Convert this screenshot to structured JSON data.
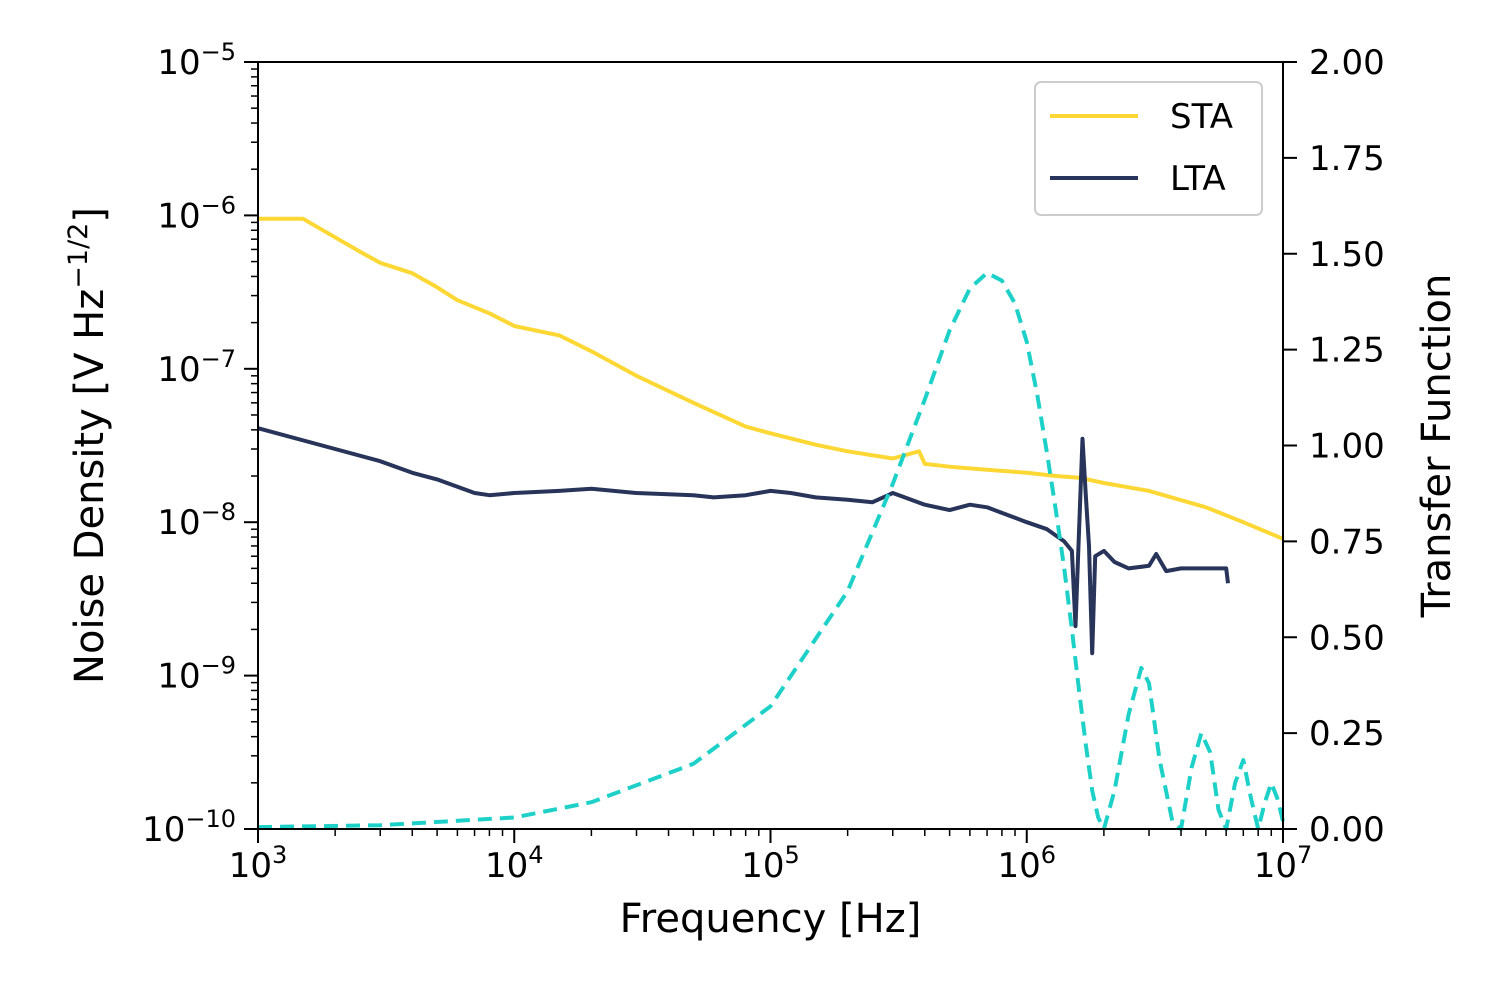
{
  "chart_data": {
    "type": "line",
    "xlabel": "Frequency [Hz]",
    "ylabel_left": "Noise Density [V Hz⁻¹ᐟ²]",
    "ylabel_left_parts": [
      "Noise Density [V Hz",
      "−1/2",
      "]"
    ],
    "ylabel_right": "Transfer Function",
    "x_scale": "log",
    "x_range": [
      1000,
      10000000
    ],
    "x_ticks": [
      {
        "value": 1000,
        "base": "10",
        "exp": "3"
      },
      {
        "value": 10000,
        "base": "10",
        "exp": "4"
      },
      {
        "value": 100000,
        "base": "10",
        "exp": "5"
      },
      {
        "value": 1000000,
        "base": "10",
        "exp": "6"
      },
      {
        "value": 10000000,
        "base": "10",
        "exp": "7"
      }
    ],
    "y_left_scale": "log",
    "y_left_range": [
      1e-10,
      1e-05
    ],
    "y_left_ticks": [
      {
        "value": 1e-10,
        "base": "10",
        "exp": "−10"
      },
      {
        "value": 1e-09,
        "base": "10",
        "exp": "−9"
      },
      {
        "value": 1e-08,
        "base": "10",
        "exp": "−8"
      },
      {
        "value": 1e-07,
        "base": "10",
        "exp": "−7"
      },
      {
        "value": 1e-06,
        "base": "10",
        "exp": "−6"
      },
      {
        "value": 1e-05,
        "base": "10",
        "exp": "−5"
      }
    ],
    "y_right_scale": "linear",
    "y_right_range": [
      0,
      2
    ],
    "y_right_ticks": [
      "0.00",
      "0.25",
      "0.50",
      "0.75",
      "1.00",
      "1.25",
      "1.50",
      "1.75",
      "2.00"
    ],
    "legend_position": "top-right",
    "series": [
      {
        "name": "STA",
        "axis": "left",
        "color": "#fdd835",
        "style": "solid",
        "x": [
          1000,
          1500,
          2000,
          2500,
          3000,
          4000,
          5000,
          6000,
          8000,
          10000,
          15000,
          20000,
          30000,
          50000,
          80000,
          100000,
          150000,
          200000,
          300000,
          380000,
          400000,
          500000,
          700000,
          1000000,
          1300000,
          1600000,
          2000000,
          3000000,
          5000000,
          7000000,
          10000000
        ],
        "y": [
          9.5e-07,
          9.5e-07,
          7.2e-07,
          5.8e-07,
          4.9e-07,
          4.2e-07,
          3.4e-07,
          2.8e-07,
          2.3e-07,
          1.9e-07,
          1.65e-07,
          1.3e-07,
          9e-08,
          6e-08,
          4.2e-08,
          3.8e-08,
          3.2e-08,
          2.9e-08,
          2.6e-08,
          2.9e-08,
          2.4e-08,
          2.3e-08,
          2.2e-08,
          2.1e-08,
          2e-08,
          1.95e-08,
          1.8e-08,
          1.6e-08,
          1.25e-08,
          1e-08,
          7.8e-09
        ]
      },
      {
        "name": "LTA",
        "axis": "left",
        "color": "#283459",
        "style": "solid",
        "x": [
          1000,
          2000,
          3000,
          4000,
          5000,
          6000,
          7000,
          8000,
          10000,
          15000,
          20000,
          30000,
          50000,
          60000,
          80000,
          100000,
          120000,
          150000,
          200000,
          250000,
          300000,
          400000,
          500000,
          600000,
          700000,
          800000,
          1000000,
          1200000,
          1400000,
          1500000,
          1550000,
          1600000,
          1650000,
          1700000,
          1750000,
          1800000,
          1850000,
          2000000,
          2200000,
          2500000,
          3000000,
          3200000,
          3500000,
          4000000,
          5000000,
          6000000,
          6100000
        ],
        "y": [
          4.1e-08,
          3e-08,
          2.5e-08,
          2.1e-08,
          1.9e-08,
          1.7e-08,
          1.55e-08,
          1.5e-08,
          1.55e-08,
          1.6e-08,
          1.65e-08,
          1.55e-08,
          1.5e-08,
          1.45e-08,
          1.5e-08,
          1.6e-08,
          1.55e-08,
          1.45e-08,
          1.4e-08,
          1.35e-08,
          1.55e-08,
          1.3e-08,
          1.2e-08,
          1.3e-08,
          1.25e-08,
          1.15e-08,
          1e-08,
          9e-09,
          7.5e-09,
          6.5e-09,
          2.1e-09,
          9e-09,
          3.5e-08,
          1.5e-08,
          7e-09,
          1.4e-09,
          6e-09,
          6.5e-09,
          5.5e-09,
          5e-09,
          5.2e-09,
          6.2e-09,
          4.8e-09,
          5e-09,
          5e-09,
          5e-09,
          4e-09
        ]
      },
      {
        "name": "",
        "axis": "right",
        "color": "#1ed1c8",
        "style": "dashed",
        "x": [
          1000,
          3000,
          10000,
          20000,
          50000,
          100000,
          200000,
          300000,
          400000,
          500000,
          600000,
          700000,
          800000,
          900000,
          1000000,
          1100000,
          1200000,
          1300000,
          1400000,
          1500000,
          1600000,
          1700000,
          1800000,
          1900000,
          2000000,
          2200000,
          2500000,
          2800000,
          3000000,
          3300000,
          3700000,
          4000000,
          4400000,
          4800000,
          5200000,
          5600000,
          6000000,
          6500000,
          7000000,
          7500000,
          8000000,
          8500000,
          9000000,
          9500000,
          10000000
        ],
        "y": [
          0.005,
          0.01,
          0.03,
          0.07,
          0.17,
          0.32,
          0.62,
          0.9,
          1.12,
          1.3,
          1.41,
          1.45,
          1.43,
          1.37,
          1.27,
          1.13,
          0.98,
          0.83,
          0.68,
          0.52,
          0.36,
          0.22,
          0.1,
          0.03,
          0.0,
          0.1,
          0.3,
          0.42,
          0.38,
          0.18,
          0.02,
          0.0,
          0.16,
          0.25,
          0.2,
          0.05,
          0.0,
          0.12,
          0.18,
          0.08,
          0.0,
          0.07,
          0.12,
          0.08,
          0.02
        ]
      }
    ]
  }
}
